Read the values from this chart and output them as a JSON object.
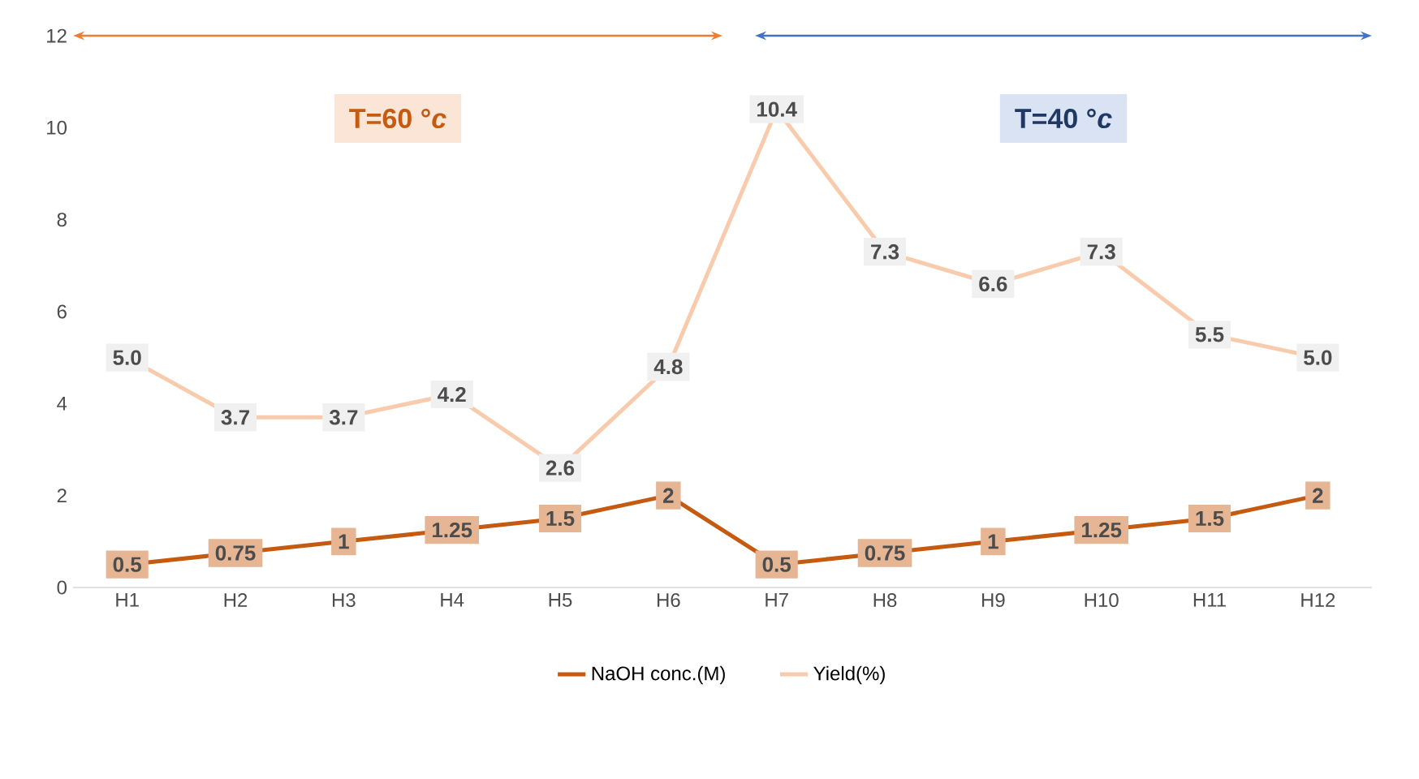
{
  "chart_data": {
    "type": "line",
    "categories": [
      "H1",
      "H2",
      "H3",
      "H4",
      "H5",
      "H6",
      "H7",
      "H8",
      "H9",
      "H10",
      "H11",
      "H12"
    ],
    "series": [
      {
        "name": "NaOH conc.(M)",
        "color": "#c55a11",
        "values": [
          0.5,
          0.75,
          1,
          1.25,
          1.5,
          2,
          0.5,
          0.75,
          1,
          1.25,
          1.5,
          2
        ],
        "value_labels": [
          "0.5",
          "0.75",
          "1",
          "1.25",
          "1.5",
          "2",
          "0.5",
          "0.75",
          "1",
          "1.25",
          "1.5",
          "2"
        ]
      },
      {
        "name": "Yield(%)",
        "color": "#f8cbad",
        "values": [
          5.0,
          3.7,
          3.7,
          4.2,
          2.6,
          4.8,
          10.4,
          7.3,
          6.6,
          7.3,
          5.5,
          5.0
        ],
        "value_labels": [
          "5.0",
          "3.7",
          "3.7",
          "4.2",
          "2.6",
          "4.8",
          "10.4",
          "7.3",
          "6.6",
          "7.3",
          "5.5",
          "5.0"
        ]
      }
    ],
    "ylim": [
      0,
      12
    ],
    "yticks": [
      0,
      2,
      4,
      6,
      8,
      10,
      12
    ],
    "grid": false,
    "legend": "bottom",
    "marker": "square",
    "line_style": "solid",
    "annotations": [
      "T=60 °*c*",
      "T=40 °*c*"
    ]
  }
}
